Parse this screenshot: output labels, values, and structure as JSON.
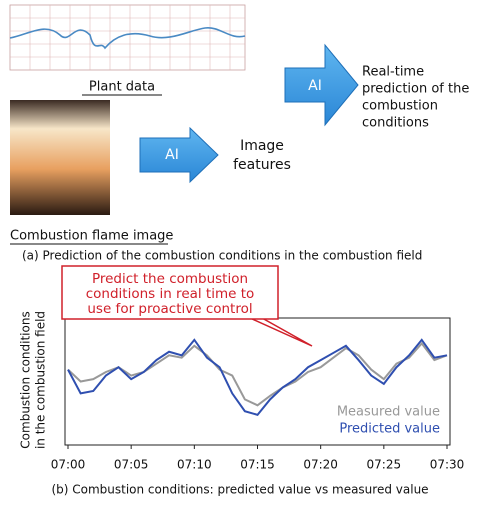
{
  "diagram": {
    "plant_data_label": "Plant data",
    "flame_label": "Combustion flame image",
    "ai_1": "AI",
    "ai_2": "AI",
    "image_features": [
      "Image",
      "features"
    ],
    "realtime": [
      "Real-time",
      "prediction of the",
      "combustion",
      "conditions"
    ],
    "caption_a": "(a) Prediction of the combustion conditions in the combustion field"
  },
  "chart_data": {
    "type": "line",
    "ylabel": [
      "Combustion conditions",
      "in the combustion field"
    ],
    "annotation": [
      "Predict the combustion",
      "conditions in real time to",
      "use for proactive control"
    ],
    "caption": "(b) Combustion conditions: predicted value vs measured value",
    "x": [
      "07:00",
      "07:01",
      "07:02",
      "07:03",
      "07:04",
      "07:05",
      "07:06",
      "07:07",
      "07:08",
      "07:09",
      "07:10",
      "07:11",
      "07:12",
      "07:13",
      "07:14",
      "07:15",
      "07:16",
      "07:17",
      "07:18",
      "07:19",
      "07:20",
      "07:21",
      "07:22",
      "07:23",
      "07:24",
      "07:25",
      "07:26",
      "07:27",
      "07:28",
      "07:29",
      "07:30"
    ],
    "xticks": [
      "07:00",
      "07:05",
      "07:10",
      "07:15",
      "07:20",
      "07:25",
      "07:30"
    ],
    "ylim": [
      0,
      100
    ],
    "legend": "bottom-right",
    "series": [
      {
        "name": "Measured value",
        "color": "#999999",
        "values": [
          60,
          50,
          52,
          58,
          62,
          55,
          58,
          65,
          72,
          70,
          80,
          72,
          60,
          55,
          35,
          30,
          38,
          45,
          50,
          58,
          62,
          70,
          78,
          72,
          60,
          52,
          65,
          70,
          82,
          68,
          72
        ]
      },
      {
        "name": "Predicted value",
        "color": "#2f4fb0",
        "values": [
          60,
          40,
          42,
          55,
          62,
          52,
          58,
          68,
          75,
          72,
          85,
          70,
          62,
          40,
          25,
          22,
          35,
          45,
          52,
          62,
          68,
          74,
          80,
          68,
          55,
          48,
          62,
          72,
          85,
          70,
          72
        ]
      }
    ]
  }
}
